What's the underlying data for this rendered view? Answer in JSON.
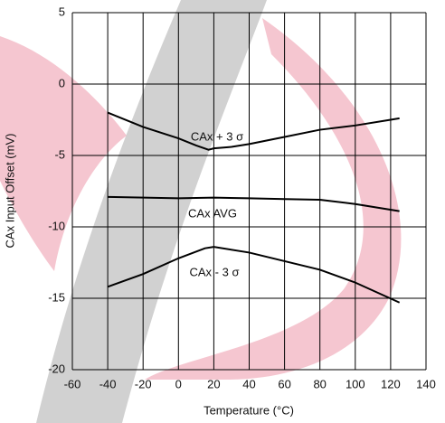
{
  "chart_data": {
    "type": "line",
    "x_label": "Temperature (°C)",
    "y_label": "CAx Input Offset (mV)",
    "xlim": [
      -60,
      140
    ],
    "xticks": [
      -60,
      -40,
      -20,
      0,
      20,
      40,
      60,
      80,
      100,
      120,
      140
    ],
    "ylim": [
      -20,
      5
    ],
    "yticks": [
      5,
      0,
      -5,
      -10,
      -15,
      -20
    ],
    "grid": true,
    "series": [
      {
        "name": "CAx + 3 σ",
        "color": "#000000",
        "x": [
          -40,
          -20,
          0,
          10,
          17,
          20,
          30,
          40,
          60,
          80,
          100,
          120,
          125
        ],
        "values": [
          -2.0,
          -3.0,
          -3.8,
          -4.3,
          -4.6,
          -4.5,
          -4.4,
          -4.2,
          -3.7,
          -3.2,
          -2.9,
          -2.5,
          -2.4
        ]
      },
      {
        "name": "CAx AVG",
        "color": "#000000",
        "x": [
          -40,
          0,
          20,
          40,
          60,
          80,
          100,
          125
        ],
        "values": [
          -7.9,
          -8.0,
          -7.95,
          -8.0,
          -8.05,
          -8.1,
          -8.4,
          -8.9
        ]
      },
      {
        "name": "CAx - 3 σ",
        "color": "#000000",
        "x": [
          -40,
          -20,
          0,
          15,
          20,
          40,
          60,
          80,
          100,
          125
        ],
        "values": [
          -14.2,
          -13.3,
          -12.2,
          -11.5,
          -11.4,
          -11.8,
          -12.4,
          -13.0,
          -13.9,
          -15.3
        ]
      }
    ]
  }
}
